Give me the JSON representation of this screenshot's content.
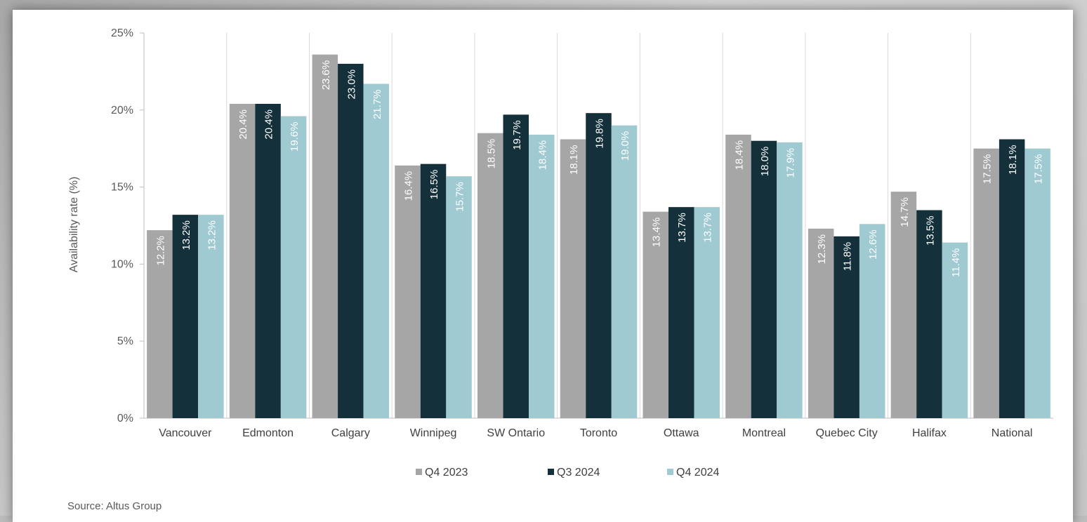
{
  "chart_data": {
    "type": "bar",
    "title": "",
    "xlabel": "",
    "ylabel": "Availability rate (%)",
    "ylim": [
      0,
      25
    ],
    "yticks": [
      "0%",
      "5%",
      "10%",
      "15%",
      "20%",
      "25%"
    ],
    "grid": "vertical separators between categories",
    "legend_position": "bottom",
    "categories": [
      "Vancouver",
      "Edmonton",
      "Calgary",
      "Winnipeg",
      "SW Ontario",
      "Toronto",
      "Ottawa",
      "Montreal",
      "Quebec City",
      "Halifax",
      "National"
    ],
    "series": [
      {
        "name": "Q4 2023",
        "color": "#a6a6a6",
        "label_color": "#ffffff",
        "values": [
          12.2,
          20.4,
          23.6,
          16.4,
          18.5,
          18.1,
          13.4,
          18.4,
          12.3,
          14.7,
          17.5
        ],
        "labels": [
          "12.2%",
          "20.4%",
          "23.6%",
          "16.4%",
          "18.5%",
          "18.1%",
          "13.4%",
          "18.4%",
          "12.3%",
          "14.7%",
          "17.5%"
        ]
      },
      {
        "name": "Q3 2024",
        "color": "#14303b",
        "label_color": "#ffffff",
        "values": [
          13.2,
          20.4,
          23.0,
          16.5,
          19.7,
          19.8,
          13.7,
          18.0,
          11.8,
          13.5,
          18.1
        ],
        "labels": [
          "13.2%",
          "20.4%",
          "23.0%",
          "16.5%",
          "19.7%",
          "19.8%",
          "13.7%",
          "18.0%",
          "11.8%",
          "13.5%",
          "18.1%"
        ]
      },
      {
        "name": "Q4 2024",
        "color": "#9fcad2",
        "label_color": "#ffffff",
        "values": [
          13.2,
          19.6,
          21.7,
          15.7,
          18.4,
          19.0,
          13.7,
          17.9,
          12.6,
          11.4,
          17.5
        ],
        "labels": [
          "13.2%",
          "19.6%",
          "21.7%",
          "15.7%",
          "18.4%",
          "19.0%",
          "13.7%",
          "17.9%",
          "12.6%",
          "11.4%",
          "17.5%"
        ]
      }
    ],
    "source": "Source: Altus Group"
  }
}
